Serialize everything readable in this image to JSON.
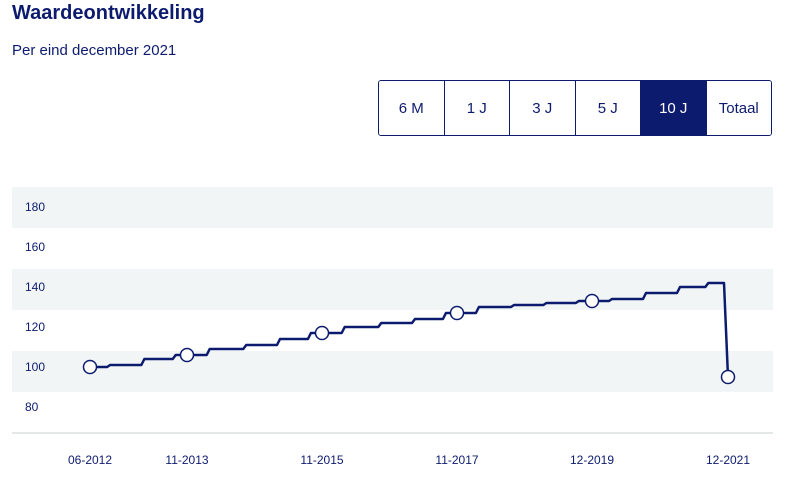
{
  "header": {
    "title": "Waardeontwikkeling",
    "subtitle": "Per eind december 2021"
  },
  "range_tabs": [
    {
      "label": "6 M",
      "active": false
    },
    {
      "label": "1 J",
      "active": false
    },
    {
      "label": "3 J",
      "active": false
    },
    {
      "label": "5 J",
      "active": false
    },
    {
      "label": "10 J",
      "active": true
    },
    {
      "label": "Totaal",
      "active": false
    }
  ],
  "colors": {
    "line": "#0d1b6e",
    "band": "#f1f5f5",
    "active_tab": "#0d1b6e"
  },
  "chart_data": {
    "type": "line",
    "title": "",
    "xlabel": "",
    "ylabel": "",
    "ylim": [
      80,
      180
    ],
    "y_ticks": [
      180,
      160,
      140,
      120,
      100,
      80
    ],
    "x_ticks": [
      "06-2012",
      "11-2013",
      "11-2015",
      "11-2017",
      "12-2019",
      "12-2021"
    ],
    "grid": "alternating horizontal bands",
    "series": [
      {
        "points": [
          {
            "x": "06-2012",
            "y": 100
          },
          {
            "x": "12-2012",
            "y": 101
          },
          {
            "x": "06-2013",
            "y": 104
          },
          {
            "x": "11-2013",
            "y": 106
          },
          {
            "x": "06-2014",
            "y": 109
          },
          {
            "x": "12-2014",
            "y": 111
          },
          {
            "x": "06-2015",
            "y": 114
          },
          {
            "x": "11-2015",
            "y": 117
          },
          {
            "x": "06-2016",
            "y": 120
          },
          {
            "x": "12-2016",
            "y": 122
          },
          {
            "x": "06-2017",
            "y": 124
          },
          {
            "x": "11-2017",
            "y": 127
          },
          {
            "x": "06-2018",
            "y": 130
          },
          {
            "x": "12-2018",
            "y": 131
          },
          {
            "x": "06-2019",
            "y": 132
          },
          {
            "x": "12-2019",
            "y": 133
          },
          {
            "x": "06-2020",
            "y": 134
          },
          {
            "x": "12-2020",
            "y": 137
          },
          {
            "x": "06-2021",
            "y": 140
          },
          {
            "x": "10-2021",
            "y": 142
          },
          {
            "x": "12-2021",
            "y": 95
          }
        ],
        "markers": [
          "06-2012",
          "11-2013",
          "11-2015",
          "11-2017",
          "12-2019",
          "12-2021"
        ]
      }
    ]
  }
}
